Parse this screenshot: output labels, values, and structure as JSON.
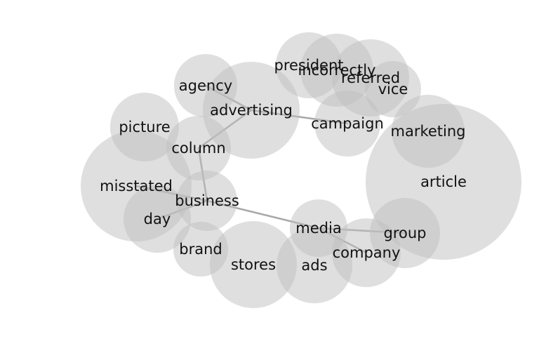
{
  "diagram": {
    "type": "word-network",
    "node_color": "#bfbfbf",
    "edge_color": "#a8a8a8",
    "text_color": "#111111",
    "nodes": [
      {
        "id": "president",
        "label": "president"
      },
      {
        "id": "incorrectly",
        "label": "incorrectly"
      },
      {
        "id": "referred",
        "label": "referred"
      },
      {
        "id": "vice",
        "label": "vice"
      },
      {
        "id": "agency",
        "label": "agency"
      },
      {
        "id": "advertising",
        "label": "advertising"
      },
      {
        "id": "campaign",
        "label": "campaign"
      },
      {
        "id": "marketing",
        "label": "marketing"
      },
      {
        "id": "picture",
        "label": "picture"
      },
      {
        "id": "column",
        "label": "column"
      },
      {
        "id": "article",
        "label": "article"
      },
      {
        "id": "misstated",
        "label": "misstated"
      },
      {
        "id": "business",
        "label": "business"
      },
      {
        "id": "day",
        "label": "day"
      },
      {
        "id": "media",
        "label": "media"
      },
      {
        "id": "group",
        "label": "group"
      },
      {
        "id": "company",
        "label": "company"
      },
      {
        "id": "brand",
        "label": "brand"
      },
      {
        "id": "stores",
        "label": "stores"
      },
      {
        "id": "ads",
        "label": "ads"
      }
    ],
    "edges": [
      [
        "agency",
        "advertising"
      ],
      [
        "advertising",
        "campaign"
      ],
      [
        "advertising",
        "column"
      ],
      [
        "column",
        "business"
      ],
      [
        "misstated",
        "business"
      ],
      [
        "business",
        "day"
      ],
      [
        "business",
        "media"
      ],
      [
        "media",
        "group"
      ],
      [
        "media",
        "company"
      ]
    ]
  }
}
